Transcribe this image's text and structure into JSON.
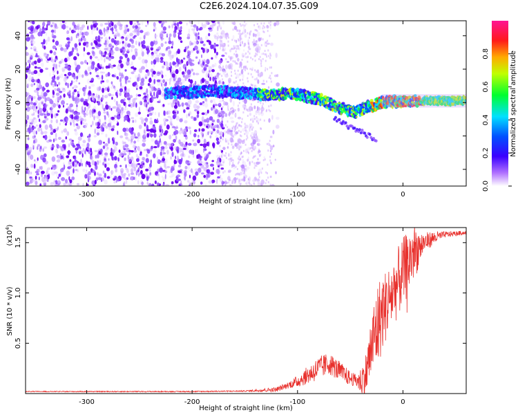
{
  "title": "C2E6.2024.104.07.35.G09",
  "chart_data": [
    {
      "type": "heatmap",
      "name": "spectrogram",
      "xlabel": "Height of straight line (km)",
      "ylabel": "Frequency (Hz)",
      "xlim": [
        -358,
        60
      ],
      "ylim": [
        -50,
        49
      ],
      "xticks": [
        -300,
        -200,
        -100,
        0
      ],
      "xtick_labels": [
        "-300",
        "-200",
        "-100",
        "0"
      ],
      "yticks": [
        -40,
        -20,
        0,
        20,
        40
      ],
      "ytick_labels": [
        "-40",
        "-20",
        "0",
        "20",
        "40"
      ],
      "ridge": {
        "x": [
          -220,
          -200,
          -180,
          -160,
          -140,
          -120,
          -100,
          -80,
          -60,
          -45,
          -35,
          -20,
          0,
          15,
          60
        ],
        "y": [
          6,
          6,
          7,
          6,
          5,
          5,
          5,
          2,
          -3,
          -6,
          -3,
          0,
          1,
          1,
          1
        ]
      },
      "colorbar": {
        "label": "Normalized spectral amplitude",
        "range": [
          0,
          1
        ],
        "ticks": [
          0.0,
          0.2,
          0.4,
          0.6,
          0.8
        ],
        "tick_labels": [
          "0.0",
          "0.2",
          "0.4",
          "0.6",
          "0.8"
        ],
        "colormap": [
          "#ffffff",
          "#6a00f0",
          "#0000ff",
          "#00e0ff",
          "#00ff40",
          "#ffff00",
          "#ff8000",
          "#ff0000",
          "#ff1493"
        ]
      }
    },
    {
      "type": "line",
      "name": "snr",
      "xlabel": "Height of straight line (km)",
      "ylabel": "SNR (10 * v/v)",
      "y_scale_label": "(x10",
      "y_scale_exp": "4",
      "y_scale_close": ")",
      "xlim": [
        -358,
        60
      ],
      "ylim": [
        0,
        1.65
      ],
      "xticks": [
        -300,
        -200,
        -100,
        0
      ],
      "xtick_labels": [
        "-300",
        "-200",
        "-100",
        "0"
      ],
      "yticks": [
        0.5,
        1.0,
        1.5
      ],
      "ytick_labels": [
        "0.5",
        "1.0",
        "1.5"
      ],
      "color": "#e8302c",
      "envelope": {
        "x": [
          -358,
          -200,
          -150,
          -120,
          -100,
          -80,
          -70,
          -60,
          -50,
          -40,
          -35,
          -30,
          -25,
          -20,
          -10,
          0,
          10,
          20,
          30,
          40,
          50,
          60
        ],
        "y": [
          0.02,
          0.02,
          0.025,
          0.04,
          0.12,
          0.25,
          0.3,
          0.22,
          0.15,
          0.12,
          0.2,
          0.45,
          0.65,
          0.8,
          1.0,
          1.2,
          1.4,
          1.5,
          1.55,
          1.58,
          1.59,
          1.6
        ]
      },
      "noise": {
        "x": [
          -358,
          -150,
          -110,
          -80,
          -60,
          -45,
          -35,
          -25,
          -15,
          0,
          10,
          20,
          40,
          60
        ],
        "amp": [
          0.004,
          0.006,
          0.03,
          0.12,
          0.1,
          0.06,
          0.22,
          0.45,
          0.35,
          0.35,
          0.3,
          0.1,
          0.03,
          0.02
        ]
      }
    }
  ]
}
